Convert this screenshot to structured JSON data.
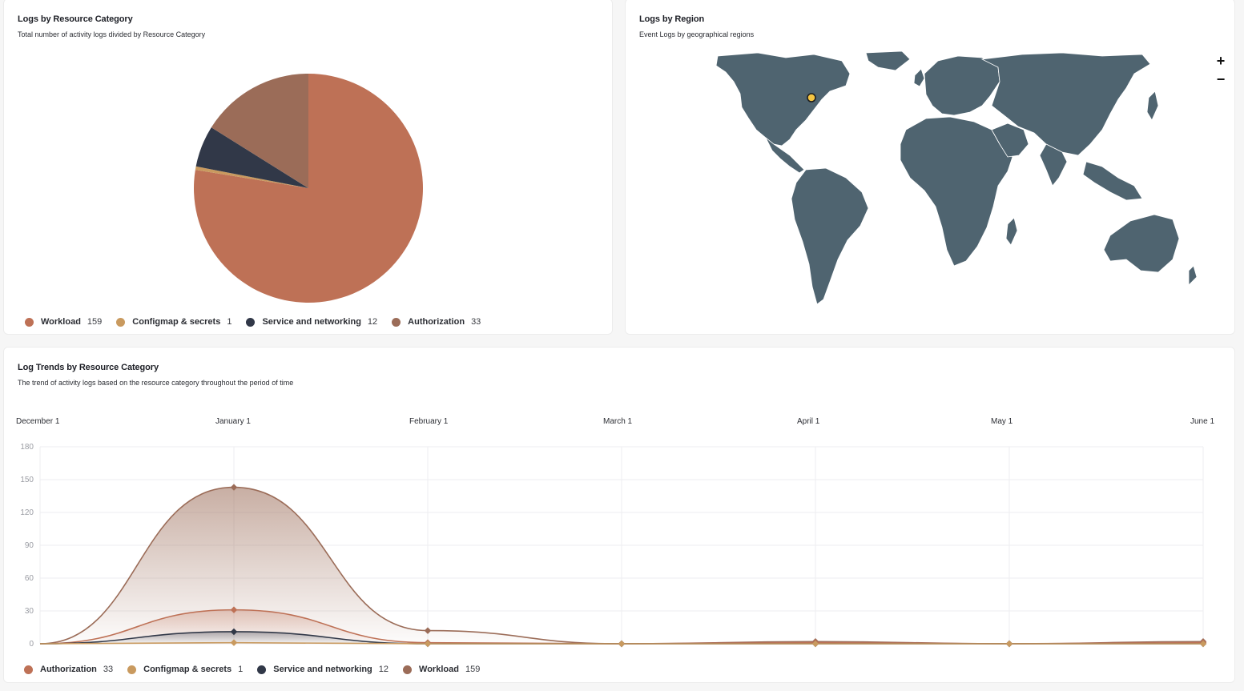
{
  "pie_card": {
    "title": "Logs by Resource Category",
    "subtitle": "Total number of activity logs divided by Resource Category"
  },
  "region_card": {
    "title": "Logs by Region",
    "subtitle": "Event Logs by geographical regions",
    "zoom_in": "+",
    "zoom_out": "−",
    "map_color": "#4f6470",
    "marker_color": "#f5c542"
  },
  "trend_card": {
    "title": "Log Trends by Resource Category",
    "subtitle": "The trend of activity logs based on the resource category throughout the period of time",
    "months": [
      "December 1",
      "January 1",
      "February 1",
      "March 1",
      "April 1",
      "May 1",
      "June 1"
    ]
  },
  "pie_legend": [
    {
      "label": "Workload",
      "count": "159",
      "color": "#be7156"
    },
    {
      "label": "Configmap & secrets",
      "count": "1",
      "color": "#c99a5f"
    },
    {
      "label": "Service and networking",
      "count": "12",
      "color": "#313848"
    },
    {
      "label": "Authorization",
      "count": "33",
      "color": "#9b6c58"
    }
  ],
  "trend_legend": [
    {
      "label": "Authorization",
      "count": "33",
      "color": "#be7156"
    },
    {
      "label": "Configmap & secrets",
      "count": "1",
      "color": "#c99a5f"
    },
    {
      "label": "Service and networking",
      "count": "12",
      "color": "#313848"
    },
    {
      "label": "Workload",
      "count": "159",
      "color": "#9b6c58"
    }
  ],
  "chart_data": [
    {
      "type": "pie",
      "title": "Logs by Resource Category",
      "labels": [
        "Workload",
        "Configmap & secrets",
        "Service and networking",
        "Authorization"
      ],
      "values": [
        159,
        1,
        12,
        33
      ],
      "colors": [
        "#be7156",
        "#c99a5f",
        "#313848",
        "#9b6c58"
      ]
    },
    {
      "type": "area",
      "title": "Log Trends by Resource Category",
      "x": [
        "December 1",
        "January 1",
        "February 1",
        "March 1",
        "April 1",
        "May 1",
        "June 1"
      ],
      "ylim": [
        0,
        180
      ],
      "yticks": [
        0,
        30,
        60,
        90,
        120,
        150,
        180
      ],
      "grid": true,
      "legend": "bottom-left",
      "series": [
        {
          "name": "Workload",
          "color": "#9b6c58",
          "values": [
            0,
            143,
            12,
            0,
            2,
            0,
            2
          ]
        },
        {
          "name": "Authorization",
          "color": "#be7156",
          "values": [
            0,
            31,
            1,
            0,
            1,
            0,
            1
          ]
        },
        {
          "name": "Service and networking",
          "color": "#313848",
          "values": [
            0,
            11,
            0,
            0,
            0,
            0,
            0
          ]
        },
        {
          "name": "Configmap & secrets",
          "color": "#c99a5f",
          "values": [
            0,
            1,
            0,
            0,
            0,
            0,
            0
          ]
        }
      ]
    }
  ]
}
